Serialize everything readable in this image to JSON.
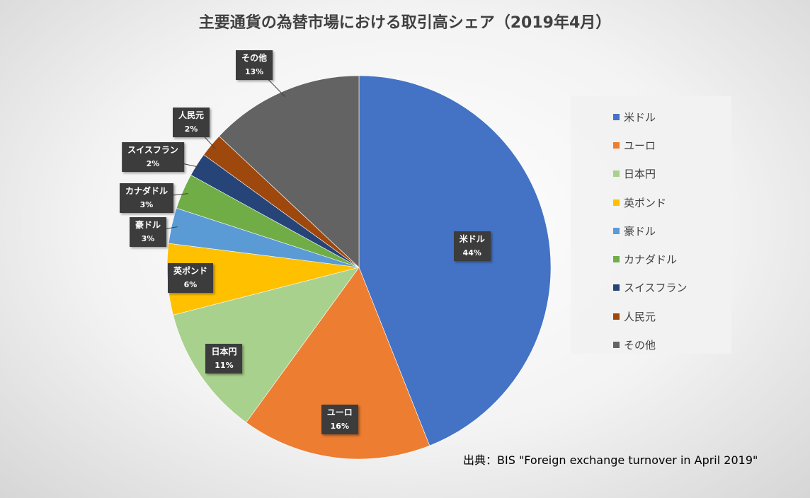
{
  "chart_data": {
    "type": "pie",
    "title": "主要通貨の為替市場における取引高シェア（2019年4月）",
    "unit": "%",
    "categories": [
      "米ドル",
      "ユーロ",
      "日本円",
      "英ポンド",
      "豪ドル",
      "カナダドル",
      "スイスフラン",
      "人民元",
      "その他"
    ],
    "values": [
      44,
      16,
      11,
      6,
      3,
      3,
      2,
      2,
      13
    ],
    "data_labels": [
      "44%",
      "16%",
      "11%",
      "6%",
      "3%",
      "3%",
      "2%",
      "2%",
      "13%"
    ],
    "colors": [
      "#4472C4",
      "#ED7D31",
      "#A9D18E",
      "#FFC000",
      "#5B9BD5",
      "#70AD47",
      "#264478",
      "#9E480E",
      "#636363"
    ],
    "legend_position": "right",
    "start_angle": "12 o'clock",
    "direction": "clockwise"
  },
  "source_note": "出典：BIS \"Foreign exchange turnover in April 2019\""
}
